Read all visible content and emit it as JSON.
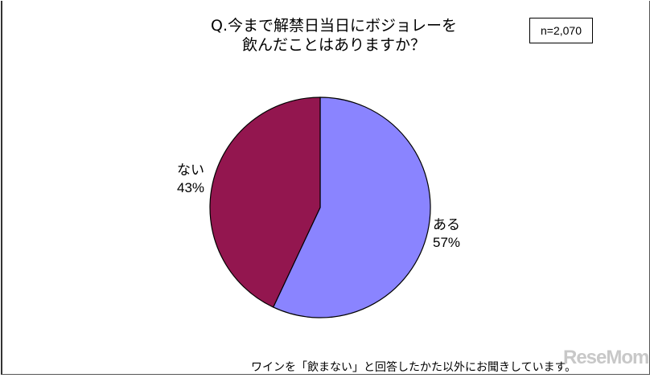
{
  "chart_data": {
    "type": "pie",
    "title_lines": [
      "Q.今まで解禁日当日にボジョレーを",
      "飲んだことはありますか？"
    ],
    "sample_size": "n=2,070",
    "start_angle": "12 o'clock",
    "direction": "clockwise",
    "slices": [
      {
        "label": "ある",
        "value": 57,
        "value_label": "57%",
        "color": "#8a84ff"
      },
      {
        "label": "ない",
        "value": 43,
        "value_label": "43%",
        "color": "#93164f"
      }
    ],
    "footnote": "ワインを「飲まない」と回答したかた以外にお聞きしています。"
  },
  "watermark": "ReseMom"
}
